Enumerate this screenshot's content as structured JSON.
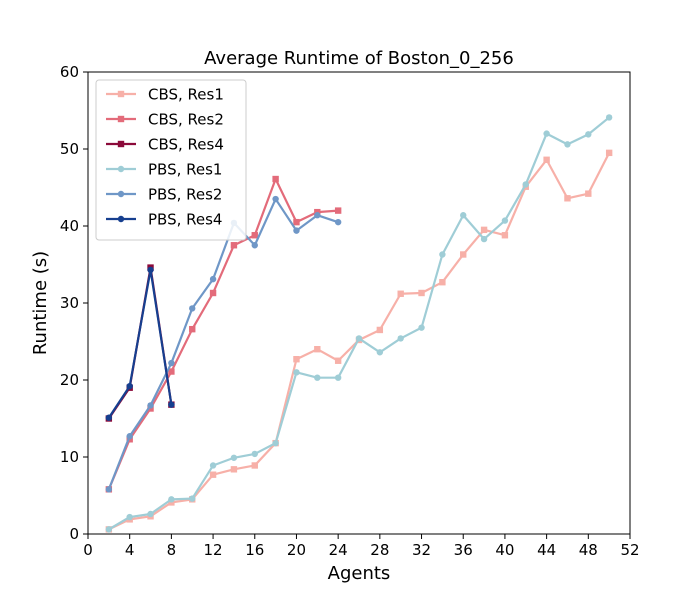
{
  "chart_data": {
    "type": "line",
    "title": "Average Runtime of Boston_0_256",
    "xlabel": "Agents",
    "ylabel": "Runtime (s)",
    "xlim": [
      0,
      52
    ],
    "ylim": [
      0,
      60
    ],
    "xticks": [
      0,
      4,
      8,
      12,
      16,
      20,
      24,
      28,
      32,
      36,
      40,
      44,
      48,
      52
    ],
    "yticks": [
      0,
      10,
      20,
      30,
      40,
      50,
      60
    ],
    "grid": false,
    "legend_position": "top-left",
    "series": [
      {
        "name": "CBS, Res1",
        "color": "#f7b0a8",
        "marker": "square",
        "x": [
          2,
          4,
          6,
          8,
          10,
          12,
          14,
          16,
          18,
          20,
          22,
          24,
          26,
          28,
          30,
          32,
          34,
          36,
          38,
          40,
          42,
          44,
          46,
          48,
          50
        ],
        "y": [
          0.6,
          1.9,
          2.3,
          4.1,
          4.5,
          7.7,
          8.4,
          8.9,
          11.8,
          22.7,
          24.0,
          22.5,
          25.2,
          26.5,
          31.2,
          31.3,
          32.7,
          36.3,
          39.5,
          38.8,
          45.1,
          48.6,
          43.6,
          44.2,
          49.5
        ]
      },
      {
        "name": "CBS, Res2",
        "color": "#e36b7a",
        "marker": "square",
        "x": [
          2,
          4,
          6,
          8,
          10,
          12,
          14,
          16,
          18,
          20,
          22,
          24
        ],
        "y": [
          5.8,
          12.3,
          16.3,
          21.1,
          26.6,
          31.3,
          37.5,
          38.8,
          46.1,
          40.5,
          41.8,
          42.0
        ]
      },
      {
        "name": "CBS, Res4",
        "color": "#8b0a3a",
        "marker": "square",
        "x": [
          2,
          4,
          6,
          8
        ],
        "y": [
          15.0,
          19.0,
          34.6,
          16.8
        ]
      },
      {
        "name": "PBS, Res1",
        "color": "#9fcdd6",
        "marker": "circle",
        "x": [
          2,
          4,
          6,
          8,
          10,
          12,
          14,
          16,
          18,
          20,
          22,
          24,
          26,
          28,
          30,
          32,
          34,
          36,
          38,
          40,
          42,
          44,
          46,
          48,
          50
        ],
        "y": [
          0.6,
          2.2,
          2.6,
          4.5,
          4.6,
          8.9,
          9.9,
          10.4,
          11.8,
          21.0,
          20.3,
          20.3,
          25.4,
          23.6,
          25.4,
          26.8,
          36.3,
          41.4,
          38.3,
          40.7,
          45.4,
          52.0,
          50.6,
          51.9,
          54.1
        ]
      },
      {
        "name": "PBS, Res2",
        "color": "#6f97c7",
        "marker": "circle",
        "x": [
          2,
          4,
          6,
          8,
          10,
          12,
          14,
          16,
          18,
          20,
          22,
          24
        ],
        "y": [
          5.8,
          12.7,
          16.7,
          22.2,
          29.3,
          33.1,
          40.4,
          37.5,
          43.5,
          39.4,
          41.4,
          40.5
        ]
      },
      {
        "name": "PBS, Res4",
        "color": "#163f8f",
        "marker": "circle",
        "x": [
          2,
          4,
          6,
          8
        ],
        "y": [
          15.1,
          19.2,
          34.3,
          16.8
        ]
      }
    ]
  }
}
